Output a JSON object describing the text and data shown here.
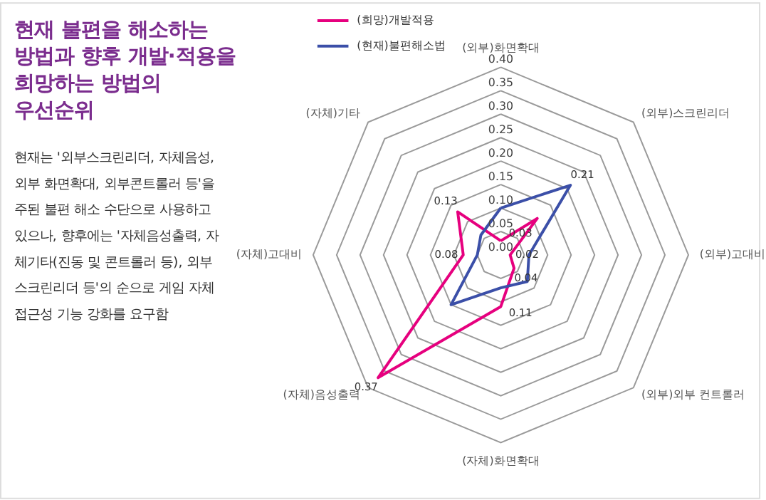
{
  "chart_data": {
    "type": "radar",
    "title": "현재 불편을 해소하는\n방법과 향후 개발·적용을\n희망하는 방법의\n우선순위",
    "annotations": [
      "현재는 '외부스크린리더, 자체음성,\n외부 화면확대, 외부콘트롤러 등'을\n주된 불편 해소 수단으로 사용하고\n있으나, 향후에는 '자체음성출력, 자\n체기타(진동 및 콘트롤러 등), 외부\n스크린리더 등'의 순으로 게임 자체\n접근성 기능 강화를 요구함"
    ],
    "categories": [
      "(외부)화면확대",
      "(외부)스크린리더",
      "(외부)고대비",
      "(외부)외부 컨트롤러",
      "(자체)화면확대",
      "(자체)음성출력",
      "(자체)고대비",
      "(자체)기타"
    ],
    "series": [
      {
        "name": "(희망)개발적용",
        "color": "#e6007e",
        "values": [
          0.03,
          0.11,
          0.02,
          0.04,
          0.11,
          0.37,
          0.08,
          0.13
        ],
        "value_labels": [
          "0.03",
          null,
          "0.02",
          "0.04",
          "0.11",
          "0.37",
          "0.08",
          "0.13"
        ]
      },
      {
        "name": "(현재)불편해소법",
        "color": "#3b4fa8",
        "values": [
          0.1,
          0.21,
          0.06,
          0.08,
          0.07,
          0.15,
          0.05,
          0.06
        ],
        "value_labels": [
          null,
          "0.21",
          null,
          null,
          null,
          null,
          null,
          null
        ]
      }
    ],
    "ylim": [
      0,
      0.4
    ],
    "yticks": [
      {
        "value": 0,
        "label": "0.00"
      },
      {
        "value": 0.05,
        "label": "0.05"
      },
      {
        "value": 0.1,
        "label": "0.10"
      },
      {
        "value": 0.15,
        "label": "0.15"
      },
      {
        "value": 0.2,
        "label": "0.20"
      },
      {
        "value": 0.25,
        "label": "0.25"
      },
      {
        "value": 0.3,
        "label": "0.30"
      },
      {
        "value": 0.35,
        "label": "0.35"
      },
      {
        "value": 0.4,
        "label": "0.40"
      }
    ],
    "grid": true,
    "legend": "top left",
    "line_style": "solid",
    "marker": "none"
  }
}
